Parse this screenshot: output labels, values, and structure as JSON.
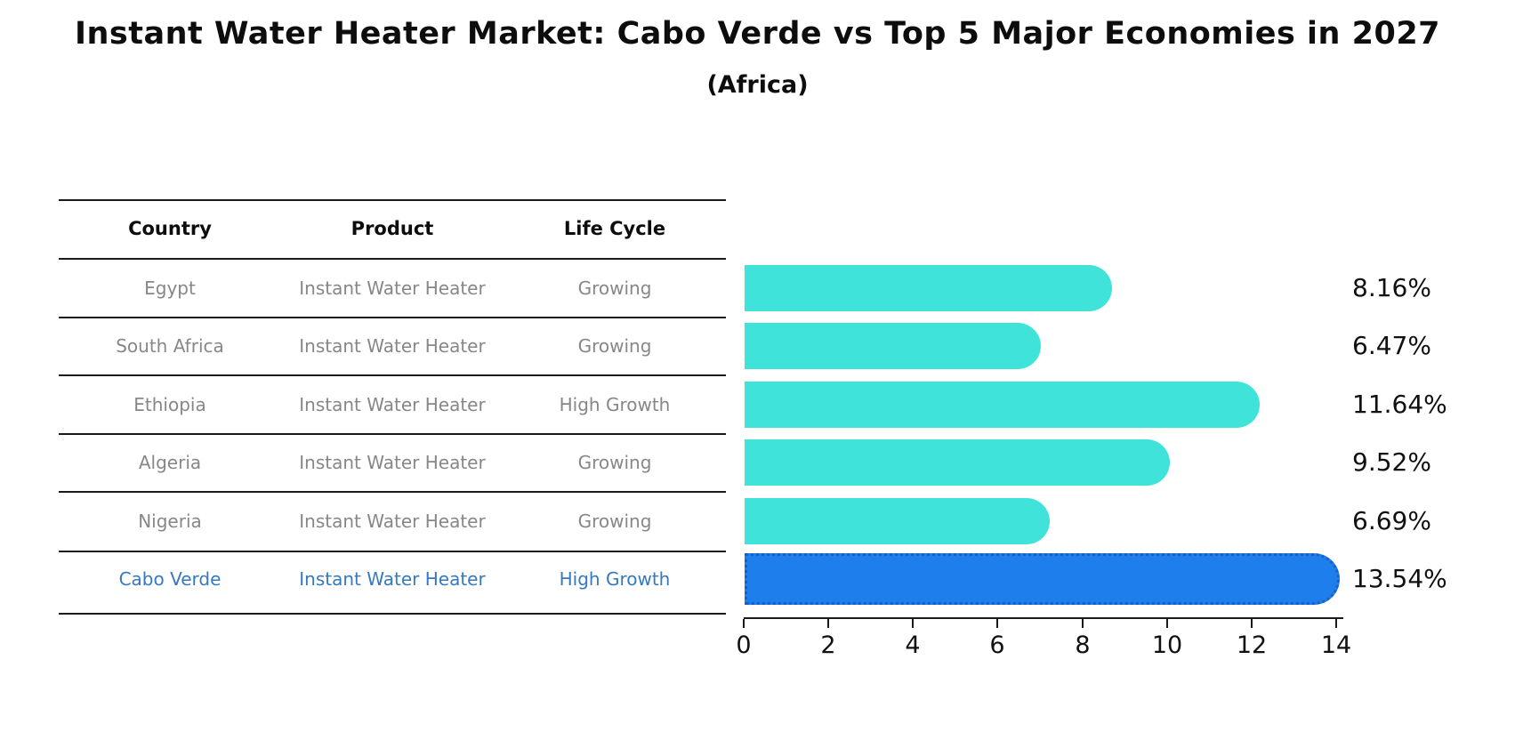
{
  "header": {
    "title": "Instant Water Heater Market: Cabo Verde vs Top 5 Major Economies in 2027",
    "subtitle": "(Africa)"
  },
  "table": {
    "columns": [
      "Country",
      "Product",
      "Life Cycle"
    ],
    "rows": [
      {
        "country": "Egypt",
        "product": "Instant Water Heater",
        "life_cycle": "Growing",
        "highlight": false
      },
      {
        "country": "South Africa",
        "product": "Instant Water Heater",
        "life_cycle": "Growing",
        "highlight": false
      },
      {
        "country": "Ethiopia",
        "product": "Instant Water Heater",
        "life_cycle": "High Growth",
        "highlight": false
      },
      {
        "country": "Algeria",
        "product": "Instant Water Heater",
        "life_cycle": "Growing",
        "highlight": false
      },
      {
        "country": "Nigeria",
        "product": "Instant Water Heater",
        "life_cycle": "Growing",
        "highlight": false
      },
      {
        "country": "Cabo Verde",
        "product": "Instant Water Heater",
        "life_cycle": "High Growth",
        "highlight": true
      }
    ]
  },
  "chart_data": {
    "type": "bar",
    "orientation": "horizontal",
    "title": "Instant Water Heater Market: Cabo Verde vs Top 5 Major Economies in 2027",
    "subtitle": "(Africa)",
    "categories": [
      "Egypt",
      "South Africa",
      "Ethiopia",
      "Algeria",
      "Nigeria",
      "Cabo Verde"
    ],
    "values": [
      8.16,
      6.47,
      11.64,
      9.52,
      6.69,
      13.54
    ],
    "value_labels": [
      "8.16%",
      "6.47%",
      "11.64%",
      "9.52%",
      "6.69%",
      "13.54%"
    ],
    "xlabel": "",
    "ylabel": "",
    "xlim": [
      0,
      14
    ],
    "x_ticks": [
      "0",
      "2",
      "4",
      "6",
      "8",
      "10",
      "12",
      "14"
    ],
    "grid": false,
    "legend": "none",
    "colors": {
      "bar_default": "#3fe3d9",
      "bar_highlight": "#1e7eeb",
      "bar_highlight_border": "#1660c8",
      "row_text": "#878787",
      "highlight_text": "#3579c0",
      "axis_text": "#111111",
      "title_text": "#0d0d0d"
    }
  }
}
